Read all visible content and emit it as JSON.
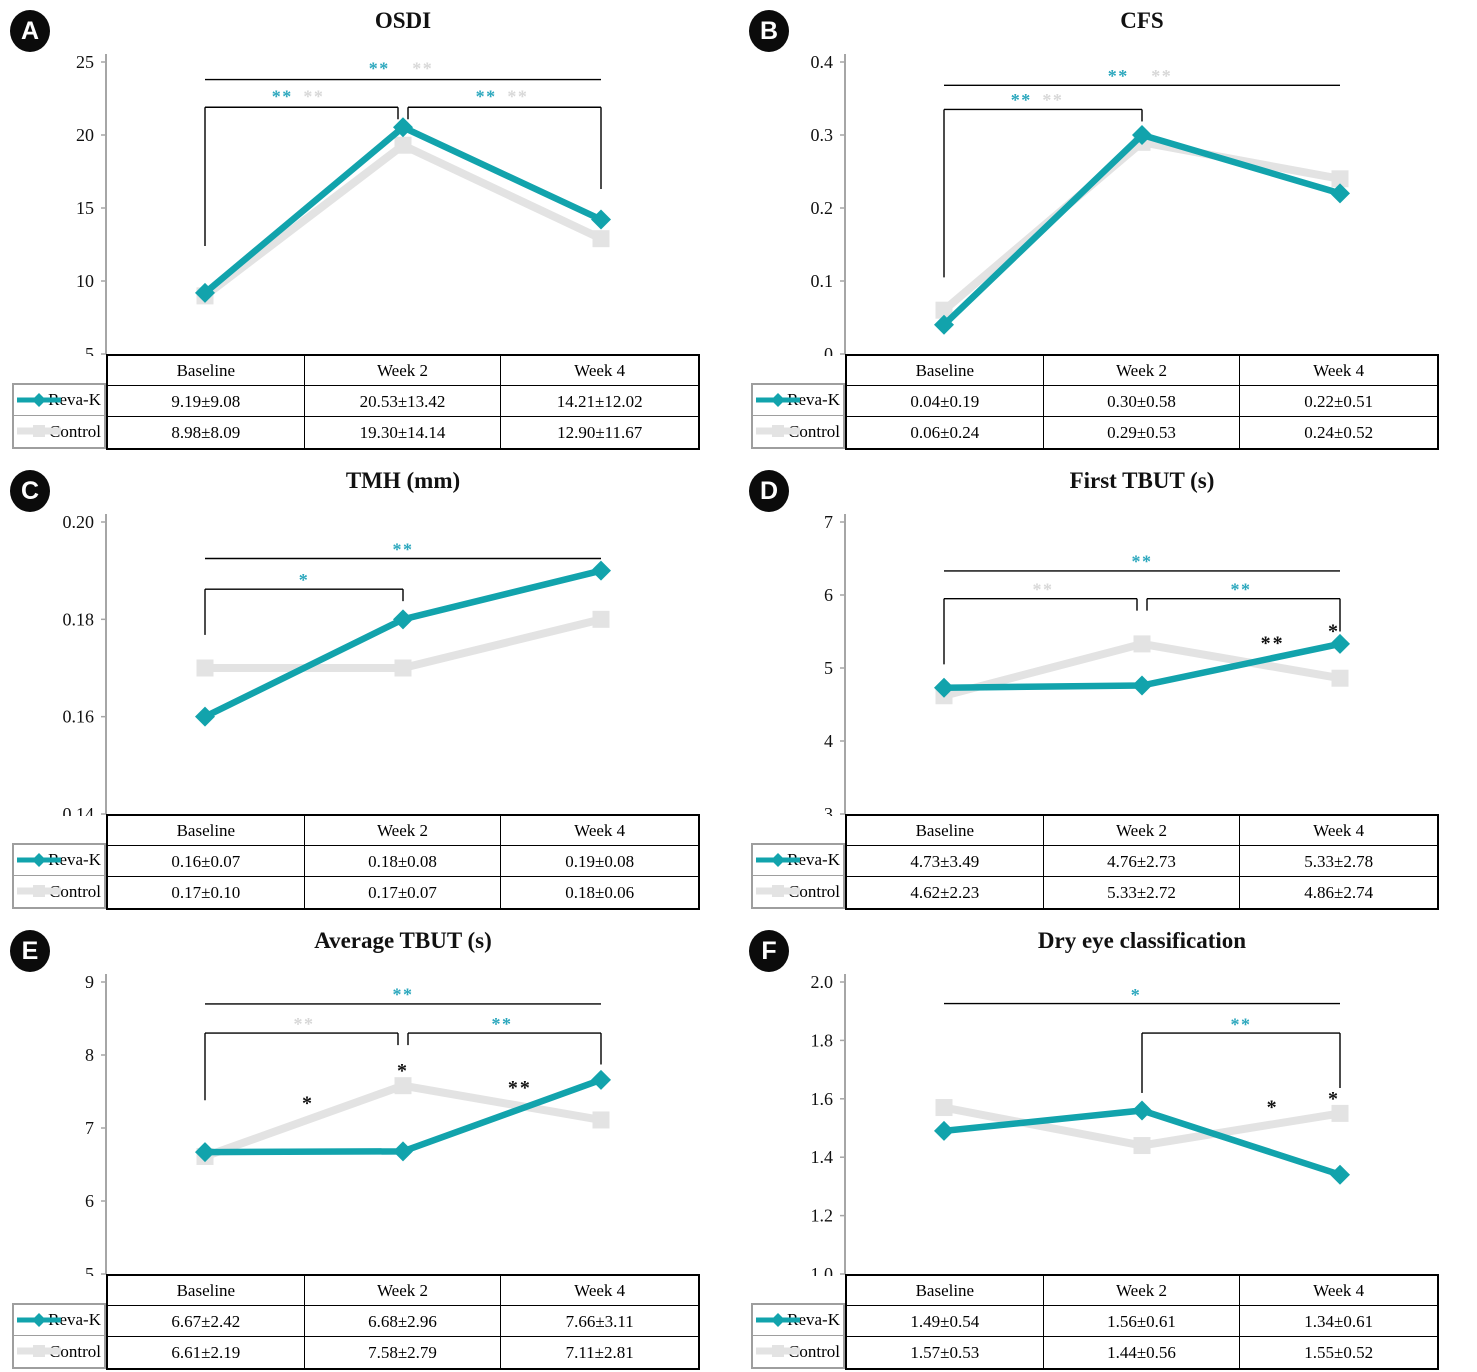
{
  "styles": {
    "reva_color": "#12a3ac",
    "control_color": "#e3e3e3",
    "star_teal": "#2ba7bd",
    "star_gray": "#d8d8d8",
    "star_black": "#111111",
    "axis_color": "#a6a6a6",
    "bracket_color": "#000000",
    "badge_bg": "#0b0b0b",
    "badge_fg": "#ffffff"
  },
  "legend": {
    "reva_label": "Reva-K",
    "control_label": "Control"
  },
  "chart_data": [
    {
      "type": "line",
      "panel_label": "A",
      "title": "OSDI",
      "categories": [
        "Baseline",
        "Week 2",
        "Week 4"
      ],
      "ylim": [
        5,
        25
      ],
      "ytick_labels": [
        "25",
        "20",
        "15",
        "10",
        "5"
      ],
      "grid": false,
      "legend_position": "table-left",
      "series": [
        {
          "name": "Reva-K",
          "key": "reva",
          "values": [
            9.19,
            20.53,
            14.21
          ]
        },
        {
          "name": "Control",
          "key": "control",
          "values": [
            8.98,
            19.3,
            12.9
          ]
        }
      ],
      "table_rows": [
        {
          "label": "Reva-K",
          "cells": [
            "9.19±9.08",
            "20.53±13.42",
            "14.21±12.02"
          ]
        },
        {
          "label": "Control",
          "cells": [
            "8.98±8.09",
            "19.30±14.14",
            "12.90±11.67"
          ]
        }
      ],
      "brackets": [
        {
          "x1": 0,
          "x2": 2,
          "y": 23.8,
          "d1": "none",
          "d2": "none",
          "sy": 24.95,
          "stars": [
            {
              "t": "**",
              "c": "teal",
              "x": 0.88
            },
            {
              "t": "**",
              "c": "gray",
              "x": 1.1
            }
          ]
        },
        {
          "x1": 0,
          "x2": 1,
          "y": 21.9,
          "d1": 12.4,
          "d2": "notch",
          "o2": -5,
          "sy": 23.05,
          "stars": [
            {
              "t": "**",
              "c": "teal",
              "x": 0.39
            },
            {
              "t": "**",
              "c": "gray",
              "x": 0.55
            }
          ]
        },
        {
          "x1": 1,
          "x2": 2,
          "y": 21.9,
          "d1": "notch",
          "d2": 16.3,
          "o1": 5,
          "sy": 23.05,
          "stars": [
            {
              "t": "**",
              "c": "teal",
              "x": 1.42
            },
            {
              "t": "**",
              "c": "gray",
              "x": 1.58
            }
          ]
        }
      ],
      "point_stars": []
    },
    {
      "type": "line",
      "panel_label": "B",
      "title": "CFS",
      "categories": [
        "Baseline",
        "Week 2",
        "Week 4"
      ],
      "ylim": [
        0,
        0.4
      ],
      "ytick_labels": [
        "0.4",
        "0.3",
        "0.2",
        "0.1",
        "0"
      ],
      "grid": false,
      "legend_position": "table-left",
      "series": [
        {
          "name": "Reva-K",
          "key": "reva",
          "values": [
            0.04,
            0.3,
            0.22
          ]
        },
        {
          "name": "Control",
          "key": "control",
          "values": [
            0.06,
            0.29,
            0.24
          ]
        }
      ],
      "table_rows": [
        {
          "label": "Reva-K",
          "cells": [
            "0.04±0.19",
            "0.30±0.58",
            "0.22±0.51"
          ]
        },
        {
          "label": "Control",
          "cells": [
            "0.06±0.24",
            "0.29±0.53",
            "0.24±0.52"
          ]
        }
      ],
      "brackets": [
        {
          "x1": 0,
          "x2": 2,
          "y": 0.368,
          "d1": "none",
          "d2": "none",
          "sy": 0.389,
          "stars": [
            {
              "t": "**",
              "c": "teal",
              "x": 0.88
            },
            {
              "t": "**",
              "c": "gray",
              "x": 1.1
            }
          ]
        },
        {
          "x1": 0,
          "x2": 1,
          "y": 0.335,
          "d1": 0.105,
          "d2": "notch",
          "sy": 0.356,
          "stars": [
            {
              "t": "**",
              "c": "teal",
              "x": 0.39
            },
            {
              "t": "**",
              "c": "gray",
              "x": 0.55
            }
          ]
        }
      ],
      "point_stars": []
    },
    {
      "type": "line",
      "panel_label": "C",
      "title": "TMH (mm)",
      "categories": [
        "Baseline",
        "Week 2",
        "Week 4"
      ],
      "ylim": [
        0.14,
        0.2
      ],
      "ytick_labels": [
        "0.20",
        "0.18",
        "0.16",
        "0.14"
      ],
      "grid": false,
      "legend_position": "table-left",
      "series": [
        {
          "name": "Reva-K",
          "key": "reva",
          "values": [
            0.16,
            0.18,
            0.19
          ]
        },
        {
          "name": "Control",
          "key": "control",
          "values": [
            0.17,
            0.17,
            0.18
          ]
        }
      ],
      "table_rows": [
        {
          "label": "Reva-K",
          "cells": [
            "0.16±0.07",
            "0.18±0.08",
            "0.19±0.08"
          ]
        },
        {
          "label": "Control",
          "cells": [
            "0.17±0.10",
            "0.17±0.07",
            "0.18±0.06"
          ]
        }
      ],
      "brackets": [
        {
          "x1": 0,
          "x2": 2,
          "y": 0.1925,
          "d1": "none",
          "d2": "none",
          "sy": 0.1956,
          "stars": [
            {
              "t": "**",
              "c": "teal",
              "x": 1.0
            }
          ]
        },
        {
          "x1": 0,
          "x2": 1,
          "y": 0.1862,
          "d1": 0.1768,
          "d2": "notch",
          "sy": 0.1893,
          "stars": [
            {
              "t": "*",
              "c": "teal",
              "x": 0.5
            }
          ]
        }
      ],
      "point_stars": []
    },
    {
      "type": "line",
      "panel_label": "D",
      "title": "First TBUT (s)",
      "categories": [
        "Baseline",
        "Week 2",
        "Week 4"
      ],
      "ylim": [
        3,
        7
      ],
      "ytick_labels": [
        "7",
        "6",
        "5",
        "4",
        "3"
      ],
      "grid": false,
      "legend_position": "table-left",
      "series": [
        {
          "name": "Reva-K",
          "key": "reva",
          "values": [
            4.73,
            4.76,
            5.33
          ]
        },
        {
          "name": "Control",
          "key": "control",
          "values": [
            4.62,
            5.33,
            4.86
          ]
        }
      ],
      "table_rows": [
        {
          "label": "Reva-K",
          "cells": [
            "4.73±3.49",
            "4.76±2.73",
            "5.33±2.78"
          ]
        },
        {
          "label": "Control",
          "cells": [
            "4.62±2.23",
            "5.33±2.72",
            "4.86±2.74"
          ]
        }
      ],
      "brackets": [
        {
          "x1": 0,
          "x2": 2,
          "y": 6.33,
          "d1": "none",
          "d2": "none",
          "sy": 6.54,
          "stars": [
            {
              "t": "**",
              "c": "teal",
              "x": 1.0
            }
          ]
        },
        {
          "x1": 0,
          "x2": 1,
          "y": 5.95,
          "d1": 5.05,
          "d2": "notch",
          "o2": -5,
          "sy": 6.16,
          "stars": [
            {
              "t": "**",
              "c": "gray",
              "x": 0.5
            }
          ]
        },
        {
          "x1": 1,
          "x2": 2,
          "y": 5.95,
          "d1": "notch",
          "d2": 5.5,
          "o1": 5,
          "sy": 6.16,
          "stars": [
            {
              "t": "**",
              "c": "teal",
              "x": 1.5
            }
          ]
        }
      ],
      "point_stars": [
        {
          "t": "**",
          "c": "black",
          "x": 1.66,
          "v": 5.42
        },
        {
          "t": "*",
          "c": "black",
          "x": 1.97,
          "v": 5.58
        }
      ]
    },
    {
      "type": "line",
      "panel_label": "E",
      "title": "Average TBUT (s)",
      "categories": [
        "Baseline",
        "Week 2",
        "Week 4"
      ],
      "ylim": [
        5,
        9
      ],
      "ytick_labels": [
        "9",
        "8",
        "7",
        "6",
        "5"
      ],
      "grid": false,
      "legend_position": "table-left",
      "series": [
        {
          "name": "Reva-K",
          "key": "reva",
          "values": [
            6.67,
            6.68,
            7.66
          ]
        },
        {
          "name": "Control",
          "key": "control",
          "values": [
            6.61,
            7.58,
            7.11
          ]
        }
      ],
      "table_rows": [
        {
          "label": "Reva-K",
          "cells": [
            "6.67±2.42",
            "6.68±2.96",
            "7.66±3.11"
          ]
        },
        {
          "label": "Control",
          "cells": [
            "6.61±2.19",
            "7.58±2.79",
            "7.11±2.81"
          ]
        }
      ],
      "brackets": [
        {
          "x1": 0,
          "x2": 2,
          "y": 8.7,
          "d1": "none",
          "d2": "none",
          "sy": 8.91,
          "stars": [
            {
              "t": "**",
              "c": "teal",
              "x": 1.0
            }
          ]
        },
        {
          "x1": 0,
          "x2": 1,
          "y": 8.3,
          "d1": 7.38,
          "d2": "notch",
          "o2": -5,
          "sy": 8.51,
          "stars": [
            {
              "t": "**",
              "c": "gray",
              "x": 0.5
            }
          ]
        },
        {
          "x1": 1,
          "x2": 2,
          "y": 8.3,
          "d1": "notch",
          "d2": 7.87,
          "o1": 5,
          "sy": 8.51,
          "stars": [
            {
              "t": "**",
              "c": "teal",
              "x": 1.5
            }
          ]
        }
      ],
      "point_stars": [
        {
          "t": "*",
          "c": "black",
          "x": 0.52,
          "v": 7.42
        },
        {
          "t": "*",
          "c": "black",
          "x": 1.0,
          "v": 7.86
        },
        {
          "t": "**",
          "c": "black",
          "x": 1.59,
          "v": 7.63
        }
      ]
    },
    {
      "type": "line",
      "panel_label": "F",
      "title": "Dry eye classification",
      "categories": [
        "Baseline",
        "Week 2",
        "Week 4"
      ],
      "ylim": [
        1.0,
        2.0
      ],
      "ytick_labels": [
        "2.0",
        "1.8",
        "1.6",
        "1.4",
        "1.2",
        "1.0"
      ],
      "grid": false,
      "legend_position": "table-left",
      "series": [
        {
          "name": "Reva-K",
          "key": "reva",
          "values": [
            1.49,
            1.56,
            1.34
          ]
        },
        {
          "name": "Control",
          "key": "control",
          "values": [
            1.57,
            1.44,
            1.55
          ]
        }
      ],
      "table_rows": [
        {
          "label": "Reva-K",
          "cells": [
            "1.49±0.54",
            "1.56±0.61",
            "1.34±0.61"
          ]
        },
        {
          "label": "Control",
          "cells": [
            "1.57±0.53",
            "1.44±0.56",
            "1.55±0.52"
          ]
        }
      ],
      "brackets": [
        {
          "x1": 0,
          "x2": 2,
          "y": 1.926,
          "d1": "none",
          "d2": "none",
          "sy": 1.976,
          "stars": [
            {
              "t": "*",
              "c": "teal",
              "x": 0.97
            }
          ]
        },
        {
          "x1": 1,
          "x2": 2,
          "y": 1.825,
          "d1": 1.62,
          "d2": 1.637,
          "sy": 1.875,
          "stars": [
            {
              "t": "**",
              "c": "teal",
              "x": 1.5
            }
          ]
        }
      ],
      "point_stars": [
        {
          "t": "*",
          "c": "black",
          "x": 1.66,
          "v": 1.59
        },
        {
          "t": "*",
          "c": "black",
          "x": 1.97,
          "v": 1.62
        }
      ]
    }
  ]
}
